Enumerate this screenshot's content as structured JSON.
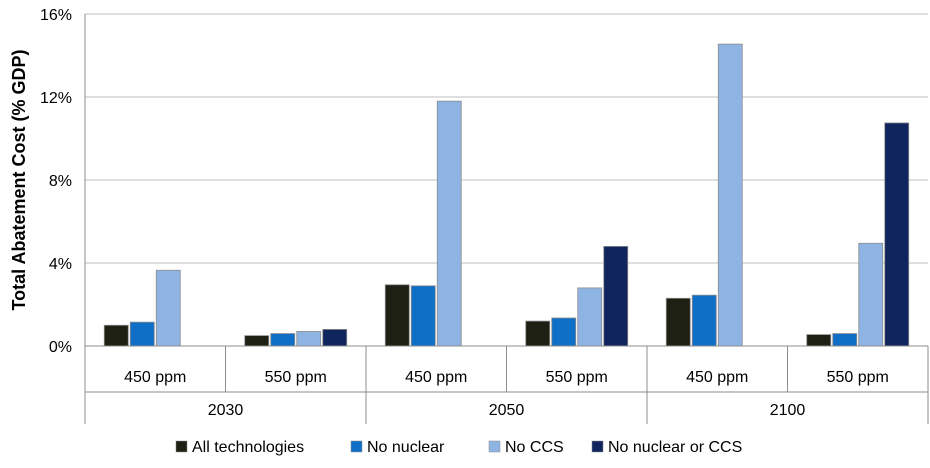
{
  "chart_data": {
    "type": "bar",
    "title": "",
    "xlabel": "",
    "ylabel": "Total Abatement Cost (% GDP)",
    "ylim": [
      0,
      16
    ],
    "yticks": [
      0,
      4,
      8,
      12,
      16
    ],
    "ytick_labels": [
      "0%",
      "4%",
      "8%",
      "12%",
      "16%"
    ],
    "grid": true,
    "legend_position": "bottom",
    "groups": [
      {
        "label": "2030",
        "categories": [
          "450 ppm",
          "550 ppm"
        ]
      },
      {
        "label": "2050",
        "categories": [
          "450 ppm",
          "550 ppm"
        ]
      },
      {
        "label": "2100",
        "categories": [
          "450 ppm",
          "550 ppm"
        ]
      }
    ],
    "categories": [
      "2030 450 ppm",
      "2030 550 ppm",
      "2050 450 ppm",
      "2050 550 ppm",
      "2100 450 ppm",
      "2100 550 ppm"
    ],
    "series": [
      {
        "name": "All technologies",
        "color": "#1f2014",
        "values": [
          1.0,
          0.5,
          2.95,
          1.2,
          2.3,
          0.55
        ]
      },
      {
        "name": "No nuclear",
        "color": "#0f6fc6",
        "values": [
          1.15,
          0.6,
          2.9,
          1.35,
          2.45,
          0.6
        ]
      },
      {
        "name": "No CCS",
        "color": "#8eb4e3",
        "values": [
          3.65,
          0.7,
          11.8,
          2.8,
          14.55,
          4.95
        ]
      },
      {
        "name": "No nuclear or CCS",
        "color": "#10245e",
        "values": [
          null,
          0.8,
          null,
          4.8,
          null,
          10.75
        ]
      }
    ]
  }
}
